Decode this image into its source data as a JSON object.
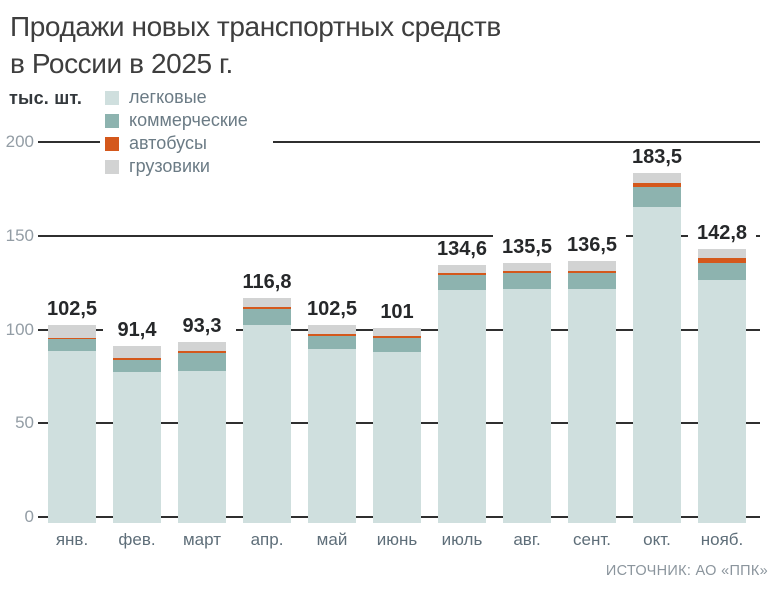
{
  "title": {
    "line1": "Продажи новых транспортных средств",
    "line2": "в России в 2025 г."
  },
  "y_axis_unit": "тыс. шт.",
  "source": "ИСТОЧНИК: АО «ППК»",
  "chart_data": {
    "type": "bar",
    "stacked": true,
    "title": "Продажи новых транспортных средств в России в 2025 г.",
    "ylabel": "тыс. шт.",
    "ylim": [
      0,
      200
    ],
    "yticks": [
      0,
      50,
      100,
      150,
      200
    ],
    "grid": true,
    "legend_position": "top-left",
    "categories": [
      "янв.",
      "фев.",
      "март",
      "апр.",
      "май",
      "июнь",
      "июль",
      "авг.",
      "сент.",
      "окт.",
      "нояб."
    ],
    "totals": [
      102.5,
      91.4,
      93.3,
      116.8,
      102.5,
      101,
      134.6,
      135.5,
      136.5,
      183.5,
      142.8
    ],
    "totals_label": [
      "102,5",
      "91,4",
      "93,3",
      "116,8",
      "102,5",
      "101",
      "134,6",
      "135,5",
      "136,5",
      "183,5",
      "142,8"
    ],
    "series": [
      {
        "name": "легковые",
        "color": "#cfdfde",
        "values": [
          88.5,
          77.2,
          77.9,
          102.4,
          89.8,
          88.2,
          121.0,
          121.5,
          121.5,
          165.5,
          126.6
        ]
      },
      {
        "name": "коммерческие",
        "color": "#8db3af",
        "values": [
          6.3,
          6.6,
          9.5,
          8.5,
          6.9,
          7.4,
          8.0,
          8.5,
          8.5,
          10.6,
          9.0
        ]
      },
      {
        "name": "автобусы",
        "color": "#d4581c",
        "values": [
          0.9,
          0.8,
          1.1,
          1.3,
          1.1,
          1.1,
          1.3,
          1.3,
          1.3,
          2.1,
          2.4
        ]
      },
      {
        "name": "грузовики",
        "color": "#d2d3d3",
        "values": [
          6.8,
          6.8,
          4.8,
          4.6,
          4.7,
          4.3,
          4.3,
          4.2,
          5.2,
          5.3,
          4.8
        ]
      }
    ]
  },
  "colors": {
    "gridline": "#2f2f2f",
    "title_text": "#3e3e3e",
    "value_label": "#26282a",
    "axis_label": "#939da5",
    "month_label": "#5e6e79",
    "source_text": "#8b959d"
  }
}
